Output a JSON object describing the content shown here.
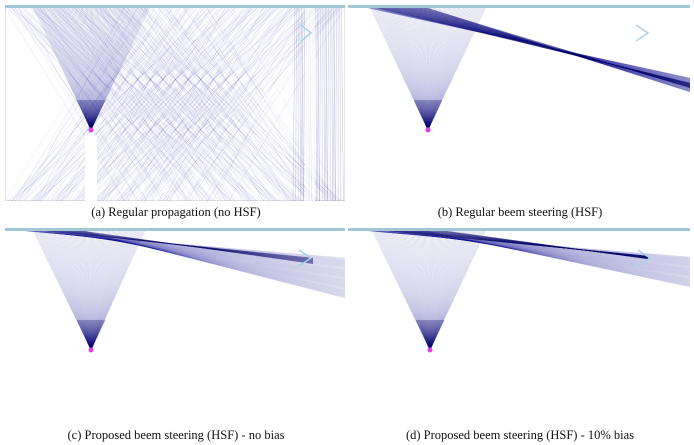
{
  "figure": {
    "panels": [
      {
        "id": "a",
        "caption": "(a) Regular propagation (no HSF)"
      },
      {
        "id": "b",
        "caption": "(b) Regular beem steering (HSF)"
      },
      {
        "id": "c",
        "caption": "(c) Proposed beem steering (HSF) - no bias"
      },
      {
        "id": "d",
        "caption": "(d) Proposed beem steering (HSF) - 10% bias"
      }
    ],
    "colors": {
      "ray": "#1f1f9a",
      "ray_dark": "#0a0a6e",
      "surface": "#9fc7d6",
      "source": "#e040e0",
      "arrow": "#a9d2e6",
      "frame": "#c8c8c8"
    }
  }
}
